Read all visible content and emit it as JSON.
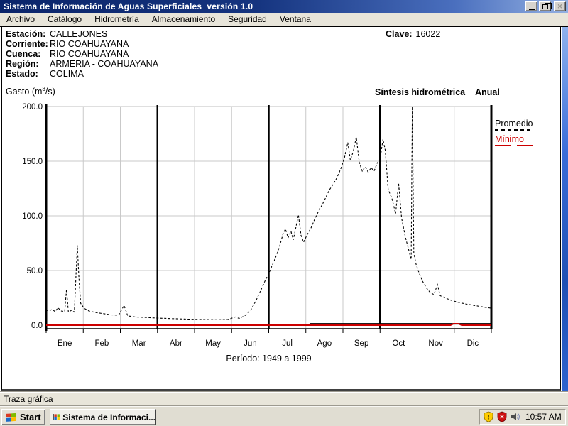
{
  "window": {
    "title": "Sistema de Información de Aguas Superficiales  versión 1.0",
    "buttons": [
      "minimize",
      "restore",
      "close"
    ]
  },
  "menu": {
    "items": [
      "Archivo",
      "Catálogo",
      "Hidrometría",
      "Almacenamiento",
      "Seguridad",
      "Ventana"
    ]
  },
  "station": {
    "fields": [
      {
        "label": "Estación:",
        "value": "CALLEJONES"
      },
      {
        "label": "Corriente:",
        "value": "RIO COAHUAYANA"
      },
      {
        "label": "Cuenca:",
        "value": "RIO COAHUAYANA"
      },
      {
        "label": "Región:",
        "value": "ARMERIA - COAHUAYANA"
      },
      {
        "label": "Estado:",
        "value": "COLIMA"
      }
    ],
    "clave_label": "Clave:",
    "clave_value": "16022"
  },
  "chart_header": {
    "ylabel_prefix": "Gasto (m",
    "ylabel_sup": "3",
    "ylabel_suffix": "/s)",
    "title": "Síntesis hidrométrica",
    "subtitle": "Anual"
  },
  "legend": {
    "items": [
      {
        "label": "Promedio",
        "color": "#000000",
        "dash": "short"
      },
      {
        "label": "Mínimo",
        "color": "#CC0000",
        "dash": "long"
      }
    ]
  },
  "chart_data": {
    "type": "line",
    "title": "Síntesis hidrométrica Anual",
    "ylabel": "Gasto (m3/s)",
    "period_label": "Período: 1949 a 1999",
    "x_months": [
      "Ene",
      "Feb",
      "Mar",
      "Abr",
      "May",
      "Jun",
      "Jul",
      "Ago",
      "Sep",
      "Oct",
      "Nov",
      "Dic"
    ],
    "y_ticks": [
      200,
      150,
      100,
      50,
      0
    ],
    "y_tick_labels": [
      "200.0",
      "150.0",
      "100.0",
      "50.0",
      "0.0"
    ],
    "ylim": [
      0,
      200
    ],
    "grid": true,
    "quarter_lines_at_month": [
      3,
      6,
      9
    ],
    "zero_overlay": {
      "from": 7.1,
      "to": 12,
      "value": 1.2
    },
    "series": [
      {
        "name": "Mínimo",
        "style": "solid",
        "color": "#CC0000",
        "width": 2,
        "points": [
          [
            0,
            0
          ],
          [
            10.9,
            0
          ],
          [
            10.98,
            1.3
          ],
          [
            11.12,
            1.3
          ],
          [
            11.2,
            0
          ],
          [
            12,
            0
          ]
        ]
      },
      {
        "name": "Promedio",
        "style": "dashed",
        "color": "#000000",
        "width": 1.1,
        "points": [
          [
            0,
            14
          ],
          [
            0.08,
            13
          ],
          [
            0.16,
            14.5
          ],
          [
            0.24,
            12.5
          ],
          [
            0.32,
            16
          ],
          [
            0.4,
            13
          ],
          [
            0.5,
            12.5
          ],
          [
            0.55,
            33
          ],
          [
            0.6,
            12
          ],
          [
            0.68,
            13.5
          ],
          [
            0.76,
            12
          ],
          [
            0.84,
            73
          ],
          [
            0.88,
            45
          ],
          [
            0.93,
            20
          ],
          [
            1.02,
            15.5
          ],
          [
            1.15,
            13
          ],
          [
            1.35,
            11.5
          ],
          [
            1.55,
            10.5
          ],
          [
            1.75,
            9.5
          ],
          [
            1.95,
            9
          ],
          [
            2.1,
            18
          ],
          [
            2.2,
            8.5
          ],
          [
            2.4,
            7.5
          ],
          [
            2.7,
            7
          ],
          [
            3,
            6.5
          ],
          [
            3.4,
            6
          ],
          [
            3.8,
            5.5
          ],
          [
            4.2,
            5.2
          ],
          [
            4.6,
            5
          ],
          [
            4.9,
            5.2
          ],
          [
            5.1,
            7.5
          ],
          [
            5.2,
            6.2
          ],
          [
            5.35,
            8.5
          ],
          [
            5.5,
            13
          ],
          [
            5.65,
            22
          ],
          [
            5.8,
            33
          ],
          [
            5.92,
            42
          ],
          [
            6,
            47
          ],
          [
            6.07,
            53
          ],
          [
            6.15,
            59
          ],
          [
            6.22,
            65
          ],
          [
            6.3,
            73
          ],
          [
            6.38,
            83
          ],
          [
            6.45,
            88
          ],
          [
            6.52,
            80
          ],
          [
            6.6,
            86
          ],
          [
            6.66,
            78
          ],
          [
            6.73,
            89
          ],
          [
            6.8,
            101
          ],
          [
            6.87,
            82
          ],
          [
            6.94,
            76
          ],
          [
            7.04,
            83
          ],
          [
            7.14,
            89
          ],
          [
            7.24,
            97
          ],
          [
            7.34,
            104
          ],
          [
            7.44,
            110
          ],
          [
            7.54,
            117
          ],
          [
            7.64,
            124
          ],
          [
            7.74,
            129
          ],
          [
            7.84,
            135
          ],
          [
            7.94,
            143
          ],
          [
            8.04,
            153
          ],
          [
            8.13,
            167
          ],
          [
            8.2,
            151
          ],
          [
            8.28,
            159
          ],
          [
            8.36,
            172
          ],
          [
            8.44,
            149
          ],
          [
            8.52,
            141
          ],
          [
            8.6,
            145
          ],
          [
            8.68,
            140
          ],
          [
            8.76,
            144
          ],
          [
            8.84,
            141
          ],
          [
            8.92,
            148
          ],
          [
            9,
            152
          ],
          [
            9.08,
            170
          ],
          [
            9.14,
            160
          ],
          [
            9.22,
            124
          ],
          [
            9.32,
            116
          ],
          [
            9.42,
            102
          ],
          [
            9.5,
            130
          ],
          [
            9.58,
            98
          ],
          [
            9.68,
            81
          ],
          [
            9.78,
            68
          ],
          [
            9.84,
            60
          ],
          [
            9.87,
            200
          ],
          [
            9.91,
            66
          ],
          [
            9.97,
            56
          ],
          [
            10.05,
            48
          ],
          [
            10.15,
            40
          ],
          [
            10.25,
            34
          ],
          [
            10.35,
            30
          ],
          [
            10.45,
            28
          ],
          [
            10.55,
            37
          ],
          [
            10.62,
            27
          ],
          [
            10.75,
            25
          ],
          [
            10.9,
            23
          ],
          [
            11.1,
            21
          ],
          [
            11.3,
            19.5
          ],
          [
            11.55,
            18
          ],
          [
            11.8,
            16.5
          ],
          [
            12,
            15.5
          ]
        ]
      }
    ]
  },
  "status_bar": {
    "text": "Traza gráfica"
  },
  "taskbar": {
    "start_label": "Start",
    "task_label": "Sistema de Informaci...",
    "clock": "10:57 AM",
    "tray_icons": [
      "security-alert-shield-icon",
      "security-error-shield-icon",
      "volume-icon"
    ]
  },
  "colors": {
    "titlebar_left": "#0A246A",
    "titlebar_right": "#93B0E2",
    "minimo_red": "#CC0000",
    "grid_gray": "#C9C9C9",
    "chrome_gray": "#E8E5DA"
  }
}
